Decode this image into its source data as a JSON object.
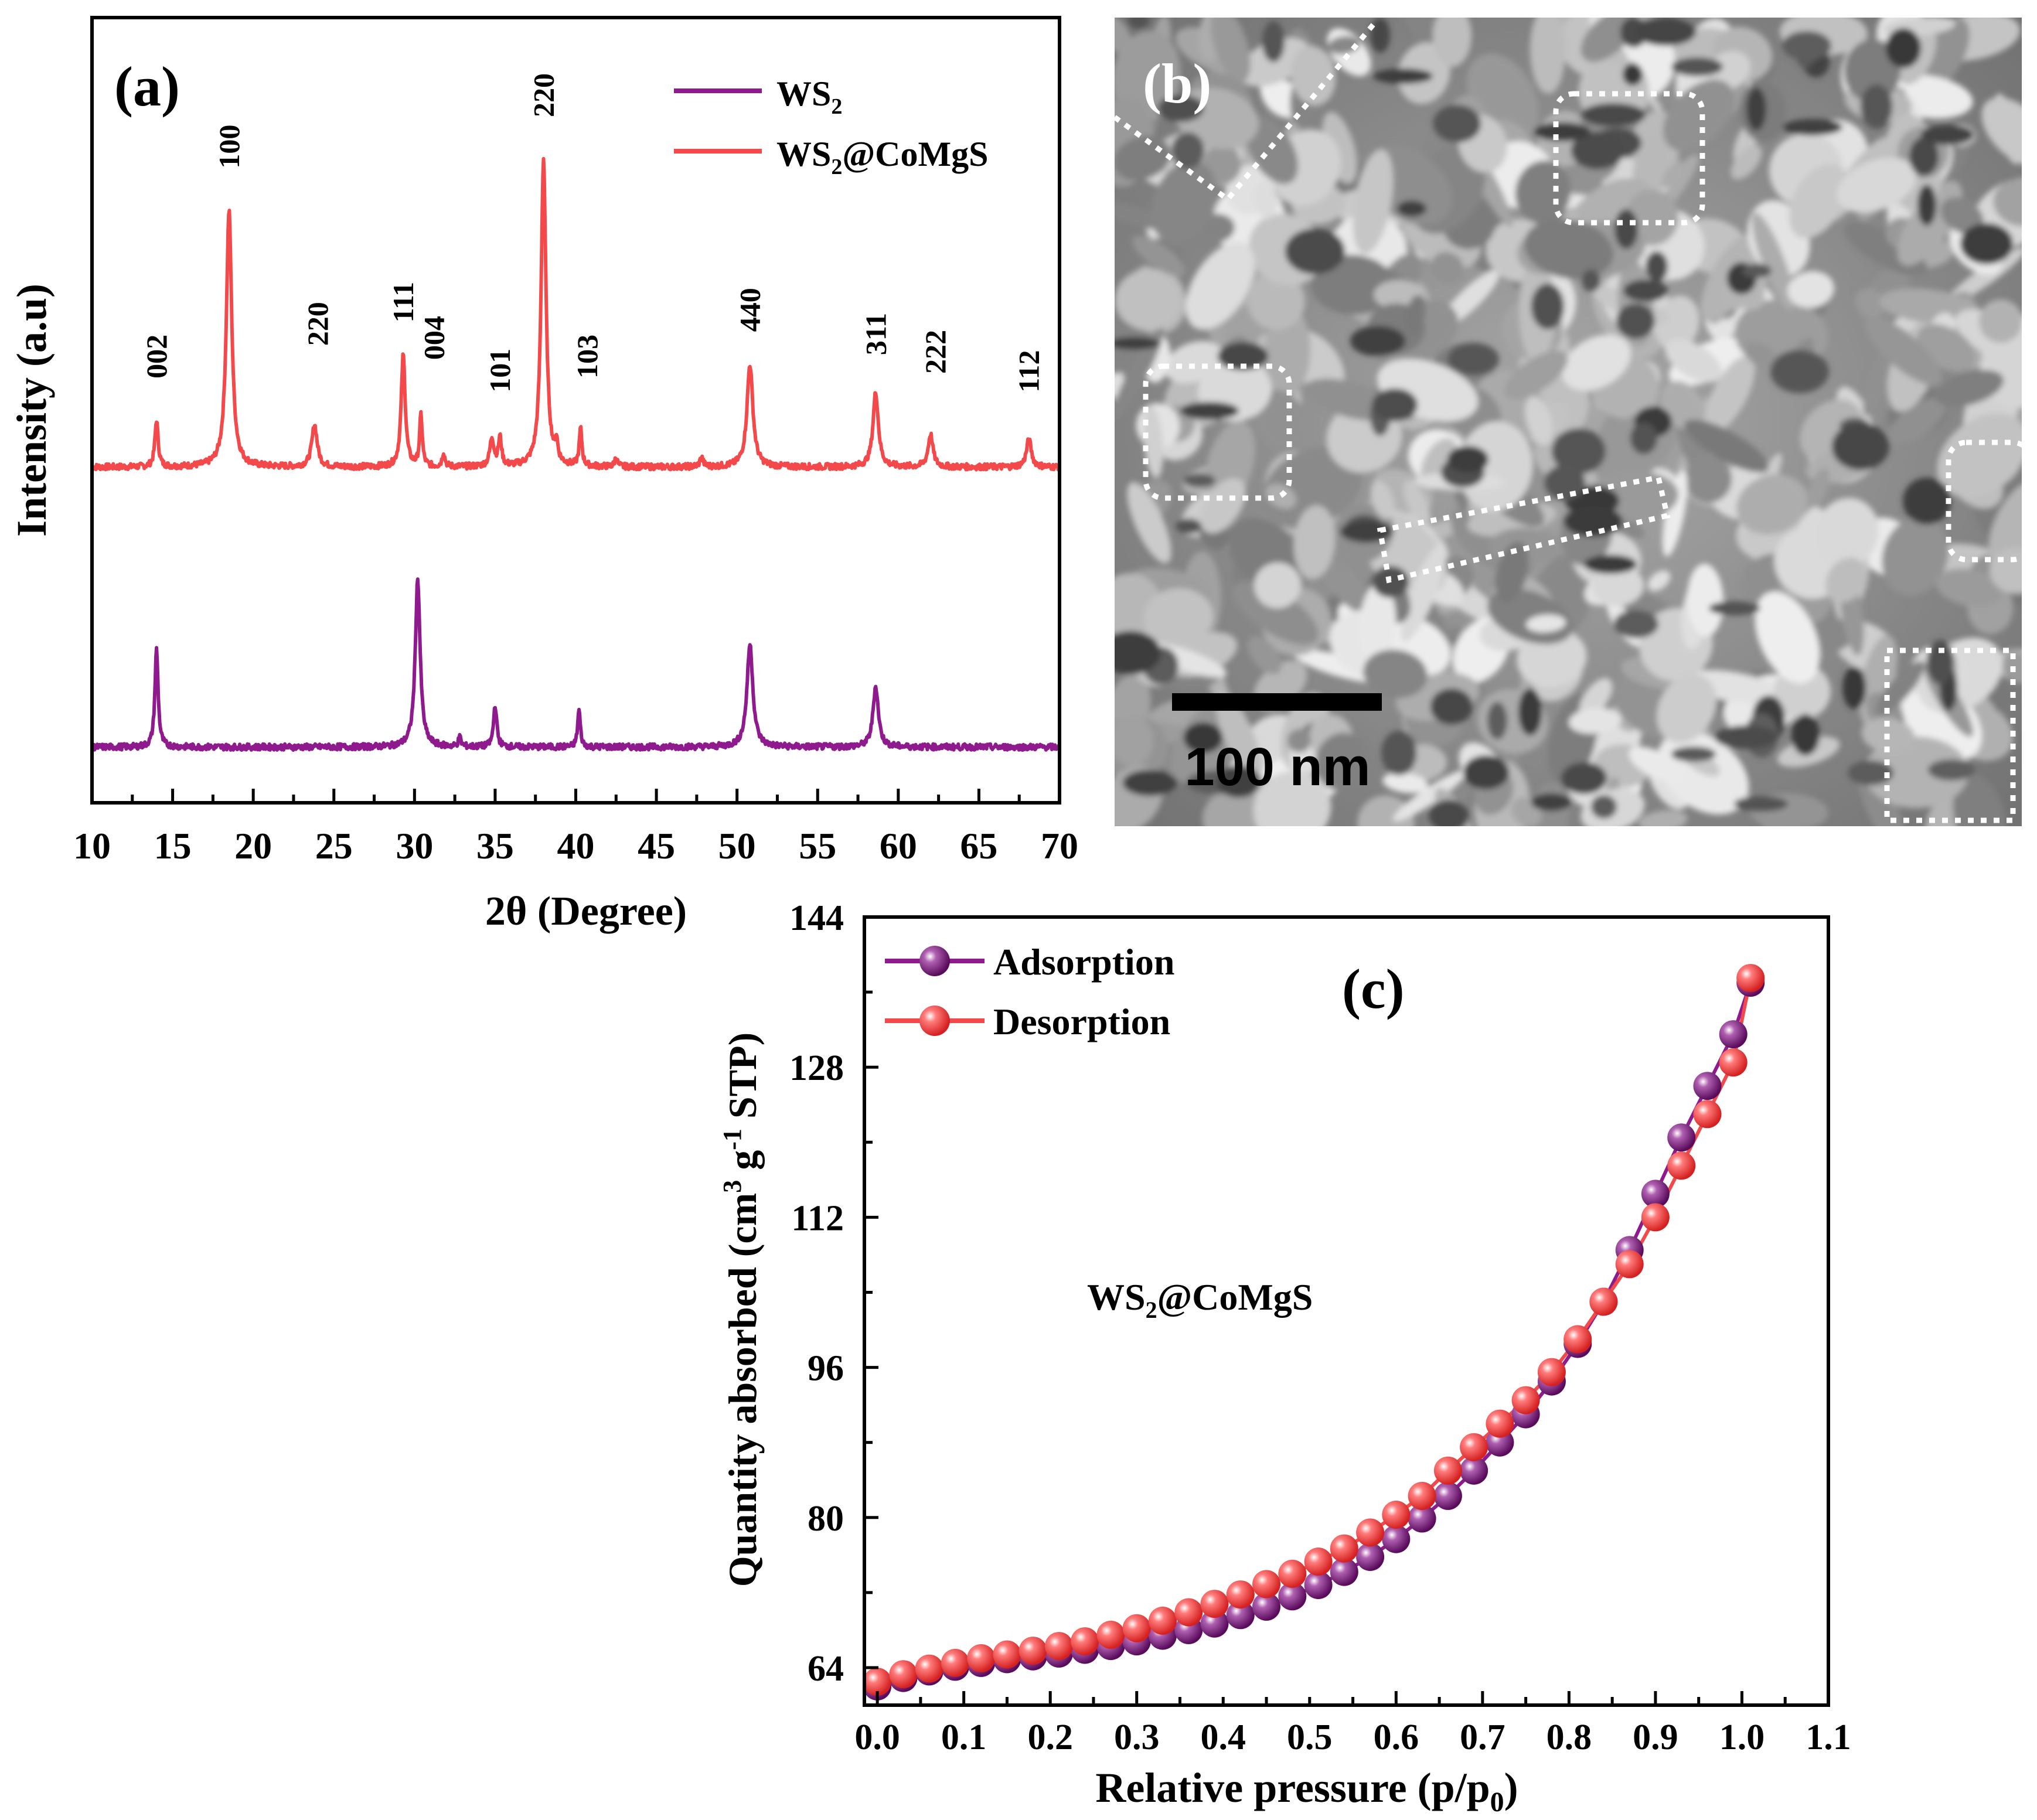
{
  "chart_data": [
    {
      "panel": "(a)",
      "type": "line",
      "xlabel": "2θ (Degree)",
      "ylabel": "Intensity (a.u)",
      "xlim": [
        10,
        70
      ],
      "xticks": [
        10,
        15,
        20,
        25,
        30,
        35,
        40,
        45,
        50,
        55,
        60,
        65,
        70
      ],
      "legend": {
        "position": "top-right"
      },
      "series": [
        {
          "name": "WS2@CoMgS",
          "label_base": "WS",
          "label_sub": "2",
          "label_rest": "@CoMgS",
          "color": "#f4494b",
          "offset": 0.6,
          "peaks": [
            {
              "x": 14.0,
              "h": 0.1,
              "w": 0.12
            },
            {
              "x": 18.5,
              "h": 0.55,
              "w": 0.2
            },
            {
              "x": 23.8,
              "h": 0.09,
              "w": 0.2
            },
            {
              "x": 29.3,
              "h": 0.24,
              "w": 0.15
            },
            {
              "x": 30.4,
              "h": 0.11,
              "w": 0.1
            },
            {
              "x": 31.8,
              "h": 0.03,
              "w": 0.1
            },
            {
              "x": 34.8,
              "h": 0.06,
              "w": 0.15
            },
            {
              "x": 35.3,
              "h": 0.06,
              "w": 0.12
            },
            {
              "x": 38.0,
              "h": 0.66,
              "w": 0.18
            },
            {
              "x": 38.8,
              "h": 0.04,
              "w": 0.1
            },
            {
              "x": 40.3,
              "h": 0.08,
              "w": 0.1
            },
            {
              "x": 42.5,
              "h": 0.02,
              "w": 0.1
            },
            {
              "x": 47.8,
              "h": 0.02,
              "w": 0.12
            },
            {
              "x": 50.8,
              "h": 0.22,
              "w": 0.22
            },
            {
              "x": 58.6,
              "h": 0.16,
              "w": 0.2
            },
            {
              "x": 62.0,
              "h": 0.07,
              "w": 0.18
            },
            {
              "x": 68.1,
              "h": 0.06,
              "w": 0.18
            }
          ],
          "peak_labels": [
            {
              "x": 14.0,
              "text": "002",
              "top": 0.79
            },
            {
              "x": 18.5,
              "text": "100",
              "top": 1.24
            },
            {
              "x": 24.0,
              "text": "220",
              "top": 0.86
            },
            {
              "x": 29.3,
              "text": "111",
              "top": 0.91
            },
            {
              "x": 31.2,
              "text": "004",
              "top": 0.83
            },
            {
              "x": 35.3,
              "text": "101",
              "top": 0.76
            },
            {
              "x": 38.0,
              "text": "220",
              "top": 1.35
            },
            {
              "x": 40.7,
              "text": "103",
              "top": 0.79
            },
            {
              "x": 50.8,
              "text": "440",
              "top": 0.89
            },
            {
              "x": 58.6,
              "text": "311",
              "top": 0.84
            },
            {
              "x": 62.3,
              "text": "222",
              "top": 0.8
            },
            {
              "x": 68.1,
              "text": "112",
              "top": 0.76
            }
          ]
        },
        {
          "name": "WS2",
          "label_base": "WS",
          "label_sub": "2",
          "label_rest": "",
          "color": "#8e1a8e",
          "offset": 0.0,
          "peaks": [
            {
              "x": 14.0,
              "h": 0.21,
              "w": 0.12
            },
            {
              "x": 30.2,
              "h": 0.36,
              "w": 0.18
            },
            {
              "x": 32.8,
              "h": 0.02,
              "w": 0.1
            },
            {
              "x": 35.0,
              "h": 0.09,
              "w": 0.12
            },
            {
              "x": 40.2,
              "h": 0.08,
              "w": 0.1
            },
            {
              "x": 50.8,
              "h": 0.22,
              "w": 0.22
            },
            {
              "x": 58.6,
              "h": 0.13,
              "w": 0.2
            }
          ]
        }
      ]
    },
    {
      "panel": "(b)",
      "type": "image",
      "scale_bar": "100 nm"
    },
    {
      "panel": "(c)",
      "type": "scatter",
      "title": "",
      "annotation_base": "WS",
      "annotation_sub": "2",
      "annotation_rest": "@CoMgS",
      "xlabel_base": "Relative pressure (p/p",
      "xlabel_sub": "0",
      "xlabel_end": ")",
      "ylabel_a": "Quantity absorbed (cm",
      "ylabel_sup1": "3",
      "ylabel_b": " g",
      "ylabel_sup2": "-1",
      "ylabel_c": " STP)",
      "xlim": [
        0.0,
        1.1
      ],
      "ylim": [
        60,
        144
      ],
      "xticks": [
        "0.0",
        "0.1",
        "0.2",
        "0.3",
        "0.4",
        "0.5",
        "0.6",
        "0.7",
        "0.8",
        "0.9",
        "1.0",
        "1.1"
      ],
      "yticks": [
        64,
        80,
        96,
        112,
        128,
        144
      ],
      "legend": {
        "position": "top-left"
      },
      "series": [
        {
          "name": "Adsorption",
          "color": "#8e1a8e",
          "x": [
            0.0,
            0.03,
            0.06,
            0.09,
            0.12,
            0.15,
            0.18,
            0.21,
            0.24,
            0.27,
            0.3,
            0.33,
            0.36,
            0.39,
            0.42,
            0.45,
            0.48,
            0.51,
            0.54,
            0.57,
            0.6,
            0.63,
            0.66,
            0.69,
            0.72,
            0.75,
            0.78,
            0.81,
            0.84,
            0.87,
            0.9,
            0.93,
            0.96,
            0.99,
            1.01
          ],
          "y": [
            62.0,
            62.9,
            63.6,
            64.1,
            64.5,
            64.9,
            65.2,
            65.5,
            65.9,
            66.3,
            66.8,
            67.4,
            68.0,
            68.7,
            69.6,
            70.5,
            71.6,
            72.8,
            74.2,
            75.8,
            77.7,
            79.9,
            82.3,
            85.0,
            88.0,
            91.0,
            94.5,
            98.5,
            103.0,
            108.5,
            114.5,
            120.5,
            126.0,
            131.5,
            137.0
          ]
        },
        {
          "name": "Desorption",
          "color": "#f4494b",
          "x": [
            0.0,
            0.03,
            0.06,
            0.09,
            0.12,
            0.15,
            0.18,
            0.21,
            0.24,
            0.27,
            0.3,
            0.33,
            0.36,
            0.39,
            0.42,
            0.45,
            0.48,
            0.51,
            0.54,
            0.57,
            0.6,
            0.63,
            0.66,
            0.69,
            0.72,
            0.75,
            0.78,
            0.81,
            0.84,
            0.87,
            0.9,
            0.93,
            0.96,
            0.99,
            1.01
          ],
          "y": [
            62.5,
            63.3,
            63.9,
            64.5,
            65.0,
            65.4,
            65.8,
            66.3,
            66.8,
            67.5,
            68.2,
            69.0,
            69.9,
            70.8,
            71.8,
            72.9,
            74.0,
            75.3,
            76.7,
            78.4,
            80.3,
            82.3,
            85.0,
            87.5,
            90.0,
            92.5,
            95.5,
            99.0,
            103.0,
            107.0,
            112.0,
            117.5,
            123.0,
            128.5,
            137.5
          ]
        }
      ]
    }
  ]
}
